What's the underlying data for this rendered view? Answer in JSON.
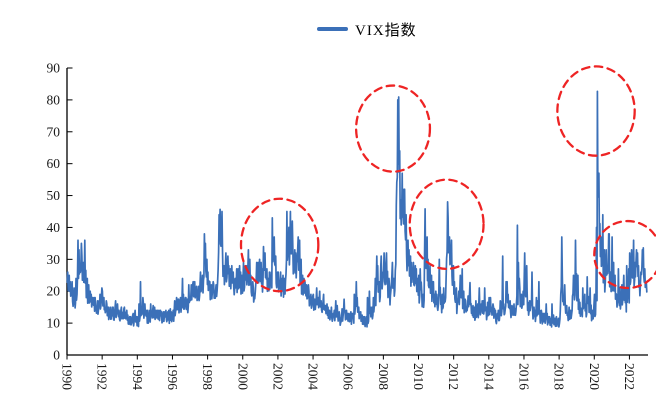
{
  "chart_data": {
    "type": "line",
    "title": "",
    "legend_position": "top-center",
    "grid": "off",
    "series": [
      {
        "name": "VIX指数",
        "color": "#3B70B8"
      }
    ],
    "x_axis": {
      "start_year": 1990,
      "end_year": 2023,
      "tick_step_years": 2,
      "tick_labels": [
        "1990",
        "1992",
        "1994",
        "1996",
        "1998",
        "2000",
        "2002",
        "2004",
        "2006",
        "2008",
        "2010",
        "2012",
        "2014",
        "2016",
        "2018",
        "2020",
        "2022"
      ]
    },
    "y_axis": {
      "min": 0,
      "max": 90,
      "tick_labels": [
        "0",
        "10",
        "20",
        "30",
        "40",
        "50",
        "60",
        "70",
        "80",
        "90"
      ]
    },
    "monthly_mean": [
      [
        23,
        22,
        20,
        20,
        18,
        17,
        19,
        27,
        29,
        30,
        26,
        25
      ],
      [
        27,
        21,
        19,
        18,
        17,
        17,
        16,
        16,
        15,
        15,
        16,
        18
      ],
      [
        17,
        16,
        15,
        14,
        13,
        13,
        13,
        13,
        13,
        14,
        14,
        12.5
      ],
      [
        12.5,
        13,
        12.5,
        13,
        12.5,
        11,
        11,
        10.5,
        11,
        11,
        12,
        10.5
      ],
      [
        10.5,
        12,
        15,
        14.5,
        13.5,
        13.5,
        12,
        12,
        12,
        13.5,
        13.5,
        13
      ],
      [
        12.5,
        12.5,
        12.5,
        12.5,
        12,
        12,
        12,
        12.5,
        12,
        12,
        12.5,
        12
      ],
      [
        12.5,
        14.5,
        15.5,
        15.5,
        15.5,
        15.5,
        18,
        16,
        16,
        16,
        15.5,
        18
      ],
      [
        19.5,
        19.5,
        20.5,
        20.5,
        19.5,
        19.5,
        19.5,
        22,
        22.5,
        26,
        30,
        26
      ],
      [
        23,
        20.5,
        20,
        21,
        20,
        20,
        19.5,
        32,
        39,
        38,
        28,
        25
      ],
      [
        27,
        28,
        25,
        24,
        25,
        24,
        21,
        24,
        24,
        24,
        22,
        22
      ],
      [
        24,
        24,
        24,
        27,
        26,
        22,
        21,
        19,
        20,
        25,
        25,
        26
      ],
      [
        25,
        24,
        30,
        28,
        24,
        22,
        23,
        23,
        34,
        32,
        27,
        24
      ],
      [
        23,
        24,
        21,
        22,
        22,
        26,
        34,
        33,
        36,
        36,
        30,
        29
      ],
      [
        28,
        33,
        32,
        27,
        22,
        22,
        21,
        20,
        20,
        18,
        17,
        17
      ],
      [
        16.5,
        16,
        18,
        16,
        17.5,
        15.5,
        15,
        16,
        14,
        14.5,
        13.5,
        12.5
      ],
      [
        13,
        11.5,
        12.5,
        14,
        13.5,
        12,
        11,
        12.5,
        12,
        15,
        12,
        11.5
      ],
      [
        11.5,
        12,
        11.5,
        11.5,
        14.5,
        17,
        14.5,
        13,
        12,
        11,
        10.5,
        10.5
      ],
      [
        10.5,
        11,
        14.5,
        13,
        13,
        15,
        17,
        25,
        21,
        19,
        26,
        22.5
      ],
      [
        27,
        25.5,
        27,
        21,
        18.5,
        22,
        24.5,
        20.5,
        30,
        61,
        63,
        52
      ],
      [
        45,
        46,
        45,
        37,
        31,
        29,
        26,
        25.5,
        24.5,
        24,
        23,
        21.5
      ],
      [
        19,
        23,
        17.5,
        17,
        32,
        29,
        25,
        24,
        22.5,
        20,
        19.5,
        17.5
      ],
      [
        16.5,
        16.5,
        21,
        16,
        16.5,
        18.5,
        19,
        35,
        37,
        32,
        30,
        24
      ],
      [
        20,
        18,
        15.5,
        17.5,
        21,
        21,
        17,
        15,
        15,
        16,
        16.5,
        17.5
      ],
      [
        13.5,
        13.5,
        12.5,
        13.5,
        13,
        17,
        14,
        14,
        14.5,
        15,
        13,
        14.5
      ],
      [
        14,
        15,
        14.5,
        14,
        12.5,
        11.5,
        12,
        13,
        13.5,
        17,
        13.5,
        16
      ],
      [
        19,
        16,
        15,
        13.5,
        13.5,
        14.5,
        14,
        19,
        24.5,
        17.5,
        16.5,
        17.5
      ],
      [
        24,
        22,
        16.5,
        14.5,
        15,
        17,
        12.5,
        12,
        13.5,
        14.5,
        15,
        12
      ],
      [
        11.5,
        11.5,
        11.5,
        13,
        10.5,
        10.5,
        10,
        11.5,
        10.5,
        10,
        10.5,
        10
      ],
      [
        11,
        22,
        19,
        18,
        14,
        13.5,
        13,
        12.5,
        12.5,
        20,
        19.5,
        25
      ],
      [
        19,
        15.5,
        14.5,
        13,
        15.5,
        15.5,
        13.5,
        19,
        15.5,
        15.5,
        12.5,
        13.5
      ],
      [
        13.5,
        20,
        57,
        41,
        31,
        31,
        26.5,
        23,
        27.5,
        29,
        25,
        22.5
      ],
      [
        24,
        22,
        20,
        17,
        19.5,
        16.5,
        17.5,
        17.5,
        20,
        16.5,
        19,
        19.5
      ],
      [
        24.5,
        27.5,
        26.5,
        25,
        28,
        27.5,
        24.5,
        22.5,
        28,
        29,
        24,
        21.5
      ]
    ],
    "monthly_high": [
      [
        26,
        25,
        23,
        23,
        21,
        20,
        24,
        36,
        33,
        35,
        31,
        29
      ],
      [
        36,
        24,
        22,
        20,
        19,
        18,
        18,
        18,
        17,
        17,
        19,
        21
      ],
      [
        20,
        18,
        17,
        16,
        15,
        15,
        15,
        15,
        15,
        17,
        16,
        14
      ],
      [
        14,
        15,
        14.5,
        15,
        14,
        12.5,
        12,
        12,
        12.5,
        13,
        14,
        12
      ],
      [
        12,
        16,
        23,
        18,
        16,
        16,
        14,
        14,
        14,
        16,
        15.5,
        15
      ],
      [
        14,
        14,
        14,
        14,
        13.5,
        13.5,
        13.5,
        14,
        13.5,
        14,
        14.5,
        13.5
      ],
      [
        14,
        17,
        18,
        17.5,
        17.5,
        18,
        24,
        19,
        18,
        18,
        17.5,
        22
      ],
      [
        22,
        22,
        23,
        23,
        21.5,
        21.5,
        22,
        26,
        25,
        38,
        35,
        30
      ],
      [
        26,
        23,
        22,
        23,
        22,
        22,
        23,
        44,
        45.7,
        45,
        33,
        28
      ],
      [
        32,
        31,
        28,
        27,
        28,
        26,
        24,
        27,
        27,
        28,
        26,
        25
      ],
      [
        29,
        28,
        28,
        33,
        30,
        25,
        23,
        21,
        22,
        29,
        29,
        30
      ],
      [
        29,
        27,
        34,
        32,
        27,
        24,
        26,
        26,
        43,
        37,
        31,
        26
      ],
      [
        26,
        26,
        24,
        25,
        24,
        30,
        45,
        40,
        45,
        42,
        34,
        33
      ],
      [
        32,
        37,
        36,
        30,
        25,
        24,
        23,
        22,
        22,
        20,
        19,
        18.5
      ],
      [
        19,
        17.5,
        21,
        18,
        20,
        17,
        17,
        19,
        15.5,
        16,
        15,
        14
      ],
      [
        15,
        13,
        14,
        17,
        15.5,
        13.5,
        12.5,
        14.5,
        14,
        17.5,
        14,
        13
      ],
      [
        13,
        13.5,
        13,
        13,
        19,
        23,
        18,
        15,
        13.5,
        12.5,
        12,
        12
      ],
      [
        12,
        18,
        20,
        15,
        15,
        18,
        24,
        31,
        28,
        23,
        31,
        26
      ],
      [
        32,
        29,
        32,
        24,
        21,
        25,
        29,
        24,
        47,
        80,
        80.9,
        64
      ],
      [
        57,
        52,
        52,
        44,
        36,
        33,
        31,
        29,
        29,
        28,
        27,
        24
      ],
      [
        25,
        27,
        20,
        19,
        45.8,
        37,
        30,
        28,
        25,
        23,
        23,
        20
      ],
      [
        19,
        19,
        30,
        18,
        19,
        21,
        24,
        48,
        43,
        37,
        36,
        28
      ],
      [
        23,
        21,
        17.5,
        20,
        25,
        27,
        20,
        17.5,
        17,
        18.5,
        19,
        22.7
      ],
      [
        15,
        15.5,
        15,
        17,
        16,
        21,
        16,
        17,
        17,
        21,
        15,
        16.5
      ],
      [
        18,
        18,
        16,
        15,
        14,
        13,
        14,
        17,
        16,
        31,
        16,
        23
      ],
      [
        23,
        19,
        17,
        15.5,
        15,
        16,
        16,
        40.7,
        29,
        21,
        19,
        20
      ],
      [
        32,
        28,
        20,
        17,
        17,
        26,
        15,
        14,
        18,
        17,
        23,
        14
      ],
      [
        13,
        13,
        13,
        16,
        12,
        12,
        11.5,
        16,
        12.5,
        11.5,
        12,
        11.5
      ],
      [
        14,
        37,
        25,
        22,
        16,
        15.5,
        15,
        14,
        14,
        25,
        23,
        36
      ],
      [
        25,
        17.5,
        16.5,
        14.5,
        21,
        19,
        16,
        24.5,
        18,
        21,
        14,
        16
      ],
      [
        19,
        40,
        82.7,
        57,
        37,
        44,
        33,
        27,
        33,
        38,
        38,
        26
      ],
      [
        37,
        29,
        25,
        19,
        27,
        21,
        22,
        21,
        25,
        20,
        28,
        27
      ],
      [
        32,
        33,
        36,
        29,
        33,
        32,
        28,
        26,
        33,
        33.6,
        27,
        23
      ]
    ],
    "annotations": {
      "shape": "dashed-ellipse",
      "color": "#EE2424",
      "items": [
        {
          "cx_year": 2002.1,
          "cy_value": 34.5,
          "rx_years": 2.2,
          "ry_value": 14.5
        },
        {
          "cx_year": 2008.55,
          "cy_value": 71.0,
          "rx_years": 2.1,
          "ry_value": 13.5
        },
        {
          "cx_year": 2011.6,
          "cy_value": 41.0,
          "rx_years": 2.1,
          "ry_value": 14.0
        },
        {
          "cx_year": 2020.1,
          "cy_value": 76.5,
          "rx_years": 2.2,
          "ry_value": 14.0
        },
        {
          "cx_year": 2021.9,
          "cy_value": 31.5,
          "rx_years": 1.9,
          "ry_value": 10.5
        }
      ]
    }
  }
}
